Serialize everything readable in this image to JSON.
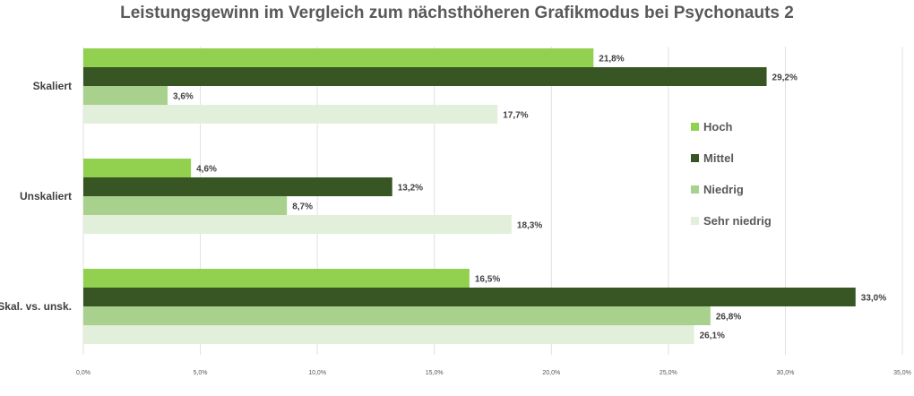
{
  "chart_data": {
    "type": "bar",
    "orientation": "horizontal",
    "title": "Leistungsgewinn im Vergleich zum nächsthöheren Grafikmodus bei Psychonauts 2",
    "categories": [
      "Skaliert",
      "Unskaliert",
      "Skal. vs. unsk."
    ],
    "series": [
      {
        "name": "Hoch",
        "color": "#92d050",
        "values": [
          21.8,
          4.6,
          16.5
        ]
      },
      {
        "name": "Mittel",
        "color": "#375623",
        "values": [
          29.2,
          13.2,
          33.0
        ]
      },
      {
        "name": "Niedrig",
        "color": "#a9d18e",
        "values": [
          3.6,
          8.7,
          26.8
        ]
      },
      {
        "name": "Sehr niedrig",
        "color": "#e2efda",
        "values": [
          17.7,
          18.3,
          26.1
        ]
      }
    ],
    "data_labels": [
      [
        "21,8%",
        "4,6%",
        "16,5%"
      ],
      [
        "29,2%",
        "13,2%",
        "33,0%"
      ],
      [
        "3,6%",
        "8,7%",
        "26,8%"
      ],
      [
        "17,7%",
        "18,3%",
        "26,1%"
      ]
    ],
    "xlim": [
      0,
      35
    ],
    "xticks": [
      0,
      5,
      10,
      15,
      20,
      25,
      30,
      35
    ],
    "xtick_labels": [
      "0,0%",
      "5,0%",
      "10,0%",
      "15,0%",
      "20,0%",
      "25,0%",
      "30,0%",
      "35,0%"
    ],
    "grid": true,
    "legend_position": "right"
  }
}
